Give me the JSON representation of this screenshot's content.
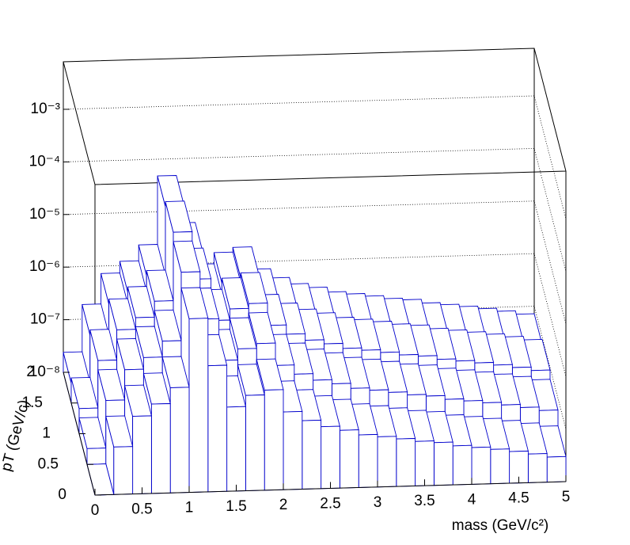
{
  "chart_data": {
    "type": "lego",
    "xlabel": "mass (GeV/c²)",
    "ylabel": "pT (GeV/c)",
    "xbins": [
      0,
      0.2,
      0.4,
      0.6,
      0.8,
      1,
      1.2,
      1.4,
      1.6,
      1.8,
      2,
      2.2,
      2.4,
      2.6,
      2.8,
      3,
      3.2,
      3.4,
      3.6,
      3.8,
      4,
      4.2,
      4.4,
      4.6,
      4.8,
      5
    ],
    "ybins": [
      0,
      0.5,
      1,
      1.5,
      2
    ],
    "xlim": [
      0,
      5
    ],
    "ylim": [
      0,
      2
    ],
    "zlim": [
      1e-08,
      0.008
    ],
    "zlog": true,
    "grid": true,
    "xticks": [
      0,
      0.5,
      1,
      1.5,
      2,
      2.5,
      3,
      3.5,
      4,
      4.5,
      5
    ],
    "yticks": [
      0,
      0.5,
      1,
      1.5,
      2
    ],
    "zticks": [
      {
        "value": 1e-08,
        "label": "10⁻⁸"
      },
      {
        "value": 1e-07,
        "label": "10⁻⁷"
      },
      {
        "value": 1e-06,
        "label": "10⁻⁶"
      },
      {
        "value": 1e-05,
        "label": "10⁻⁵"
      },
      {
        "value": 0.0001,
        "label": "10⁻⁴"
      },
      {
        "value": 0.001,
        "label": "10⁻³"
      }
    ],
    "color": "#0000cc",
    "series": [
      {
        "values": [
          1e-08,
          8e-08,
          3e-07,
          5e-07,
          1e-06,
          2e-05,
          2.5e-06,
          4e-07,
          6.5e-07,
          8e-07,
          3e-07,
          2e-07,
          1.5e-07,
          1.25e-07,
          1e-07,
          9e-08,
          8e-08,
          7e-08,
          6.5e-08,
          5.5e-08,
          5e-08,
          4.5e-08,
          4e-08,
          3.5e-08,
          3e-08
        ]
      },
      {
        "values": [
          2e-08,
          1.6e-07,
          6e-07,
          1e-06,
          2e-06,
          4e-05,
          5e-06,
          8e-07,
          1.3e-06,
          1.6e-06,
          6e-07,
          4e-07,
          3e-07,
          2.5e-07,
          2e-07,
          1.8e-07,
          1.6e-07,
          1.4e-07,
          1.3e-07,
          1.1e-07,
          1e-07,
          9e-08,
          8e-08,
          7e-08,
          6e-08
        ]
      },
      {
        "values": [
          3e-08,
          2.4e-07,
          9e-07,
          1.5e-06,
          3e-06,
          6e-05,
          7.5e-06,
          1.2e-06,
          1.95e-06,
          2.4e-06,
          9e-07,
          6e-07,
          4.5e-07,
          3.75e-07,
          3e-07,
          2.7e-07,
          2.4e-07,
          2.1e-07,
          1.95e-07,
          1.65e-07,
          1.5e-07,
          1.35e-07,
          1.2e-07,
          1.05e-07,
          9e-08
        ]
      },
      {
        "values": [
          2.4e-08,
          1.9e-07,
          7.2e-07,
          1.2e-06,
          2.4e-06,
          4.8e-05,
          6e-06,
          9.6e-07,
          1.56e-06,
          1.92e-06,
          7.2e-07,
          4.8e-07,
          3.6e-07,
          3e-07,
          2.4e-07,
          2.16e-07,
          1.92e-07,
          1.68e-07,
          1.56e-07,
          1.32e-07,
          1.2e-07,
          1.08e-07,
          9.6e-08,
          8.4e-08,
          7.2e-08
        ]
      }
    ]
  }
}
